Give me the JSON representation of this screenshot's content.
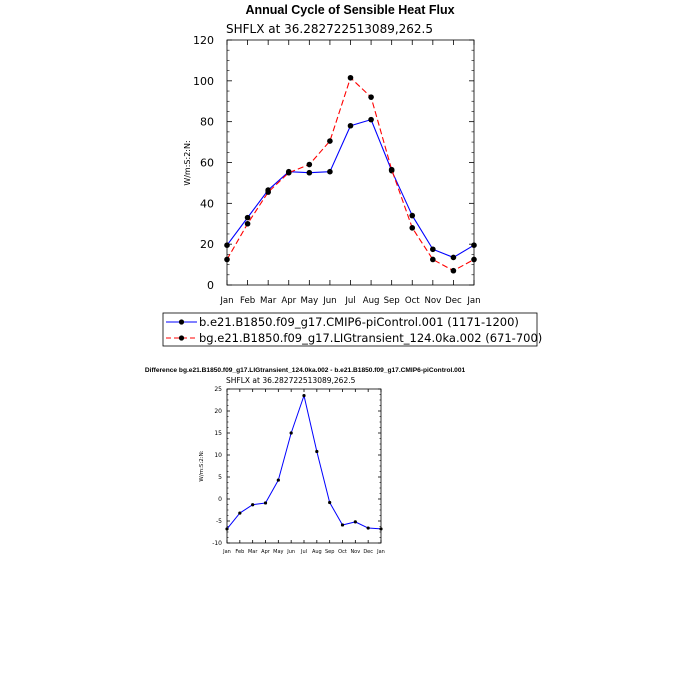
{
  "chart_data": [
    {
      "type": "line",
      "title": "Annual Cycle of Sensible Heat Flux",
      "subtitle": "SHFLX at 36.282722513089,262.5",
      "xlabel": "",
      "ylabel": "W/m:S:2:N:",
      "categories": [
        "Jan",
        "Feb",
        "Mar",
        "Apr",
        "May",
        "Jun",
        "Jul",
        "Aug",
        "Sep",
        "Oct",
        "Nov",
        "Dec",
        "Jan"
      ],
      "ylim": [
        0,
        120
      ],
      "yticks": [
        0,
        20,
        40,
        60,
        80,
        100,
        120
      ],
      "grid": false,
      "legend_position": "bottom",
      "series": [
        {
          "name": "b.e21.B1850.f09_g17.CMIP6-piControl.001 (1171-1200)",
          "color": "#0000ff",
          "dash": "solid",
          "values": [
            19.5,
            33,
            46.5,
            55.5,
            55,
            55.5,
            78,
            81,
            56,
            34,
            17.5,
            13.5,
            19.5
          ]
        },
        {
          "name": "bg.e21.B1850.f09_g17.LIGtransient_124.0ka.002 (671-700)",
          "color": "#ff0000",
          "dash": "dashed",
          "values": [
            12.5,
            30,
            45.5,
            55,
            59,
            70.5,
            101.5,
            92,
            56.5,
            28,
            12.5,
            7,
            12.5
          ]
        }
      ]
    },
    {
      "type": "line",
      "title": "Difference bg.e21.B1850.f09_g17.LIGtransient_124.0ka.002 - b.e21.B1850.f09_g17.CMIP6-piControl.001",
      "subtitle": "SHFLX at 36.282722513089,262.5",
      "xlabel": "",
      "ylabel": "W/m:S:2:N:",
      "categories": [
        "Jan",
        "Feb",
        "Mar",
        "Apr",
        "May",
        "Jun",
        "Jul",
        "Aug",
        "Sep",
        "Oct",
        "Nov",
        "Dec",
        "Jan"
      ],
      "ylim": [
        -10,
        25
      ],
      "yticks": [
        -10,
        -5,
        0,
        5,
        10,
        15,
        20,
        25
      ],
      "grid": false,
      "series": [
        {
          "name": "difference",
          "color": "#0000ff",
          "dash": "solid",
          "values": [
            -6.8,
            -3.2,
            -1.3,
            -0.9,
            4.3,
            15,
            23.5,
            10.8,
            -0.8,
            -5.9,
            -5.2,
            -6.6,
            -6.8
          ]
        }
      ]
    }
  ]
}
